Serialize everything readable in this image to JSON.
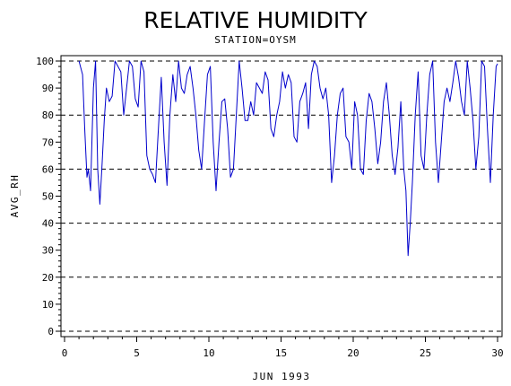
{
  "chart_data": {
    "type": "line",
    "title": "RELATIVE HUMIDITY",
    "subtitle": "STATION=OYSM",
    "xlabel": "JUN 1993",
    "ylabel": "AVG_RH",
    "xlim": [
      0,
      30
    ],
    "ylim": [
      0,
      100
    ],
    "x_ticks": [
      0,
      5,
      10,
      15,
      20,
      25,
      30
    ],
    "y_ticks": [
      0,
      10,
      20,
      30,
      40,
      50,
      60,
      70,
      80,
      90,
      100
    ],
    "reference_lines": [
      20,
      40,
      60,
      80,
      100
    ],
    "grid": "horizontal dashed at y = 0, 20, 40, 60, 80, 100",
    "line_color": "#0000cc",
    "series": [
      {
        "x": [
          1.0,
          1.1,
          1.25,
          1.4,
          1.55,
          1.65,
          1.8,
          2.0,
          2.15,
          2.3,
          2.45,
          2.6,
          2.75,
          2.9,
          3.1,
          3.3,
          3.5,
          3.7,
          3.9,
          4.1,
          4.3,
          4.5,
          4.7,
          4.9,
          5.1,
          5.3,
          5.5,
          5.7,
          5.9,
          6.1,
          6.3,
          6.5,
          6.7,
          6.9,
          7.1,
          7.3,
          7.5,
          7.7,
          7.9,
          8.1,
          8.3,
          8.5,
          8.7,
          8.9,
          9.1,
          9.3,
          9.5,
          9.7,
          9.9,
          10.1,
          10.3,
          10.5,
          10.7,
          10.9,
          11.1,
          11.3,
          11.5,
          11.7,
          11.9,
          12.1,
          12.3,
          12.5,
          12.7,
          12.9,
          13.1,
          13.3,
          13.5,
          13.7,
          13.9,
          14.1,
          14.3,
          14.5,
          14.7,
          14.9,
          15.1,
          15.3,
          15.5,
          15.7,
          15.9,
          16.1,
          16.3,
          16.5,
          16.7,
          16.9,
          17.1,
          17.3,
          17.5,
          17.7,
          17.9,
          18.1,
          18.3,
          18.5,
          18.7,
          18.9,
          19.1,
          19.3,
          19.5,
          19.7,
          19.9,
          20.1,
          20.3,
          20.5,
          20.7,
          20.9,
          21.1,
          21.3,
          21.5,
          21.7,
          21.9,
          22.1,
          22.3,
          22.5,
          22.7,
          22.9,
          23.1,
          23.3,
          23.5,
          23.65,
          23.8,
          23.95,
          24.1,
          24.3,
          24.5,
          24.7,
          24.9,
          25.1,
          25.3,
          25.5,
          25.7,
          25.9,
          26.1,
          26.3,
          26.5,
          26.7,
          26.9,
          27.1,
          27.3,
          27.5,
          27.7,
          27.9,
          28.1,
          28.3,
          28.5,
          28.7,
          28.9,
          29.1,
          29.3,
          29.5,
          29.7,
          29.9,
          30.0
        ],
        "y": [
          100,
          98,
          95,
          75,
          57,
          60,
          52,
          90,
          100,
          60,
          47,
          62,
          78,
          90,
          85,
          87,
          100,
          98,
          96,
          80,
          90,
          100,
          98,
          86,
          83,
          100,
          96,
          65,
          60,
          58,
          55,
          75,
          94,
          70,
          54,
          80,
          95,
          85,
          100,
          90,
          88,
          95,
          98,
          90,
          80,
          67,
          60,
          78,
          95,
          98,
          70,
          52,
          70,
          85,
          86,
          75,
          57,
          60,
          80,
          100,
          90,
          78,
          78,
          85,
          80,
          92,
          90,
          88,
          96,
          93,
          75,
          72,
          80,
          85,
          96,
          90,
          95,
          92,
          72,
          70,
          85,
          88,
          92,
          75,
          95,
          100,
          98,
          90,
          86,
          90,
          80,
          55,
          65,
          80,
          88,
          90,
          72,
          70,
          60,
          85,
          80,
          60,
          58,
          78,
          88,
          85,
          75,
          62,
          70,
          85,
          92,
          80,
          65,
          58,
          68,
          85,
          60,
          52,
          28,
          40,
          55,
          80,
          96,
          65,
          60,
          80,
          95,
          100,
          70,
          55,
          70,
          85,
          90,
          85,
          92,
          100,
          94,
          85,
          80,
          100,
          90,
          78,
          60,
          72,
          100,
          98,
          75,
          55,
          80,
          98,
          99
        ]
      }
    ]
  }
}
